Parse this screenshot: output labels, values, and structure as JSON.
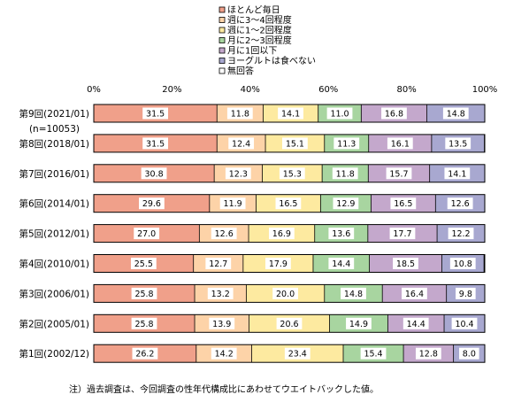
{
  "chart_data": {
    "type": "bar",
    "stacked": true,
    "orientation": "horizontal",
    "categories": [
      "第9回(2021/01)",
      "第8回(2018/01)",
      "第7回(2016/01)",
      "第6回(2014/01)",
      "第5回(2012/01)",
      "第4回(2010/01)",
      "第3回(2006/01)",
      "第2回(2005/01)",
      "第1回(2002/12)"
    ],
    "category_notes": [
      "(n=10053)",
      "",
      "",
      "",
      "",
      "",
      "",
      "",
      ""
    ],
    "series": [
      {
        "name": "ほとんど毎日",
        "color": "#f0a08a",
        "values": [
          31.5,
          31.5,
          30.8,
          29.6,
          27.0,
          25.5,
          25.8,
          25.8,
          26.2
        ]
      },
      {
        "name": "週に3～4回程度",
        "color": "#fdd3a8",
        "values": [
          11.8,
          12.4,
          12.3,
          11.9,
          12.6,
          12.7,
          13.2,
          13.9,
          14.2
        ]
      },
      {
        "name": "週に1～2回程度",
        "color": "#fdeaa0",
        "values": [
          14.1,
          15.1,
          15.3,
          16.5,
          16.9,
          17.9,
          20.0,
          20.6,
          23.4
        ]
      },
      {
        "name": "月に2～3回程度",
        "color": "#a8d5a0",
        "values": [
          11.0,
          11.3,
          11.8,
          12.9,
          13.6,
          14.4,
          14.8,
          14.9,
          15.4
        ]
      },
      {
        "name": "月に1回以下",
        "color": "#c4a8cc",
        "values": [
          16.8,
          16.1,
          15.7,
          16.5,
          17.7,
          18.5,
          16.4,
          14.4,
          12.8
        ]
      },
      {
        "name": "ヨーグルトは食べない",
        "color": "#a8a8d0",
        "values": [
          14.8,
          13.5,
          14.1,
          12.6,
          12.2,
          10.8,
          9.8,
          10.4,
          8.0
        ]
      },
      {
        "name": "無回答",
        "color": "#ffffff",
        "values": [
          0.0,
          0.2,
          0.0,
          0.0,
          0.0,
          0.2,
          0.0,
          0.0,
          0.0
        ]
      }
    ],
    "xlim": [
      0,
      100
    ],
    "xticks": [
      "0%",
      "20%",
      "40%",
      "60%",
      "80%",
      "100%"
    ],
    "legend_position": "top-right",
    "grid": false,
    "footnote": "注）過去調査は、今回調査の性年代構成比にあわせてウエイトバックした値。"
  }
}
